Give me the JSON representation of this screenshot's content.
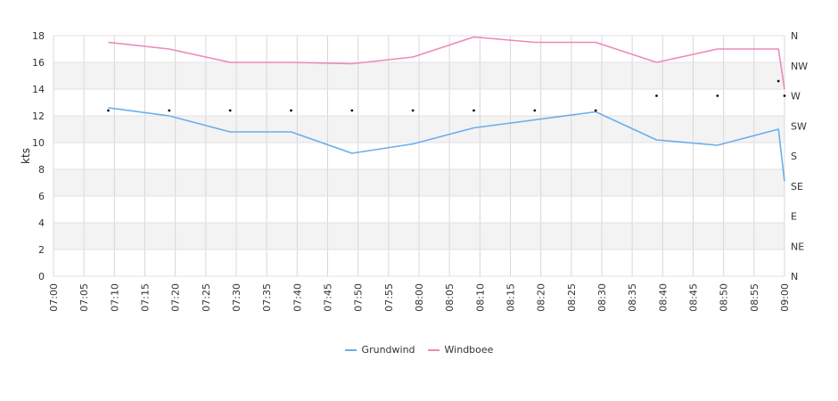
{
  "chart_data": {
    "type": "line",
    "ylabel": "kts",
    "ylim": [
      0,
      18
    ],
    "yticks": [
      "0",
      "2",
      "4",
      "6",
      "8",
      "10",
      "12",
      "14",
      "16",
      "18"
    ],
    "right_axis_labels": [
      "N",
      "NE",
      "E",
      "SE",
      "S",
      "SW",
      "W",
      "NW",
      "N"
    ],
    "x_tick_labels": [
      "07:00",
      "07:05",
      "07:10",
      "07:15",
      "07:20",
      "07:25",
      "07:30",
      "07:35",
      "07:40",
      "07:45",
      "07:50",
      "07:55",
      "08:00",
      "08:05",
      "08:10",
      "08:15",
      "08:20",
      "08:25",
      "08:30",
      "08:35",
      "08:40",
      "08:45",
      "08:50",
      "08:55",
      "09:00"
    ],
    "x_range_minutes": [
      0,
      120
    ],
    "grid": true,
    "legend_position": "bottom-center",
    "series": [
      {
        "name": "Grundwind",
        "color": "#6aaeec",
        "x_minutes": [
          9,
          19,
          29,
          39,
          49,
          59,
          69,
          79,
          89,
          99,
          109,
          119,
          120
        ],
        "values": [
          12.6,
          12.0,
          10.8,
          10.8,
          9.2,
          9.9,
          11.1,
          11.7,
          12.3,
          10.2,
          9.8,
          11.0,
          7.1
        ]
      },
      {
        "name": "Windboee",
        "color": "#ee88bb",
        "x_minutes": [
          9,
          19,
          29,
          39,
          49,
          59,
          69,
          79,
          89,
          99,
          109,
          119,
          120
        ],
        "values": [
          17.5,
          17.0,
          16.0,
          16.0,
          15.9,
          16.4,
          17.9,
          17.5,
          17.5,
          16.0,
          17.0,
          17.0,
          14.0
        ]
      }
    ],
    "direction_markers": {
      "x_minutes": [
        9,
        19,
        29,
        39,
        49,
        59,
        69,
        79,
        89,
        99,
        109,
        119,
        120
      ],
      "values": [
        12.4,
        12.4,
        12.4,
        12.4,
        12.4,
        12.4,
        12.4,
        12.4,
        12.4,
        13.5,
        13.5,
        14.6,
        13.5
      ]
    }
  }
}
